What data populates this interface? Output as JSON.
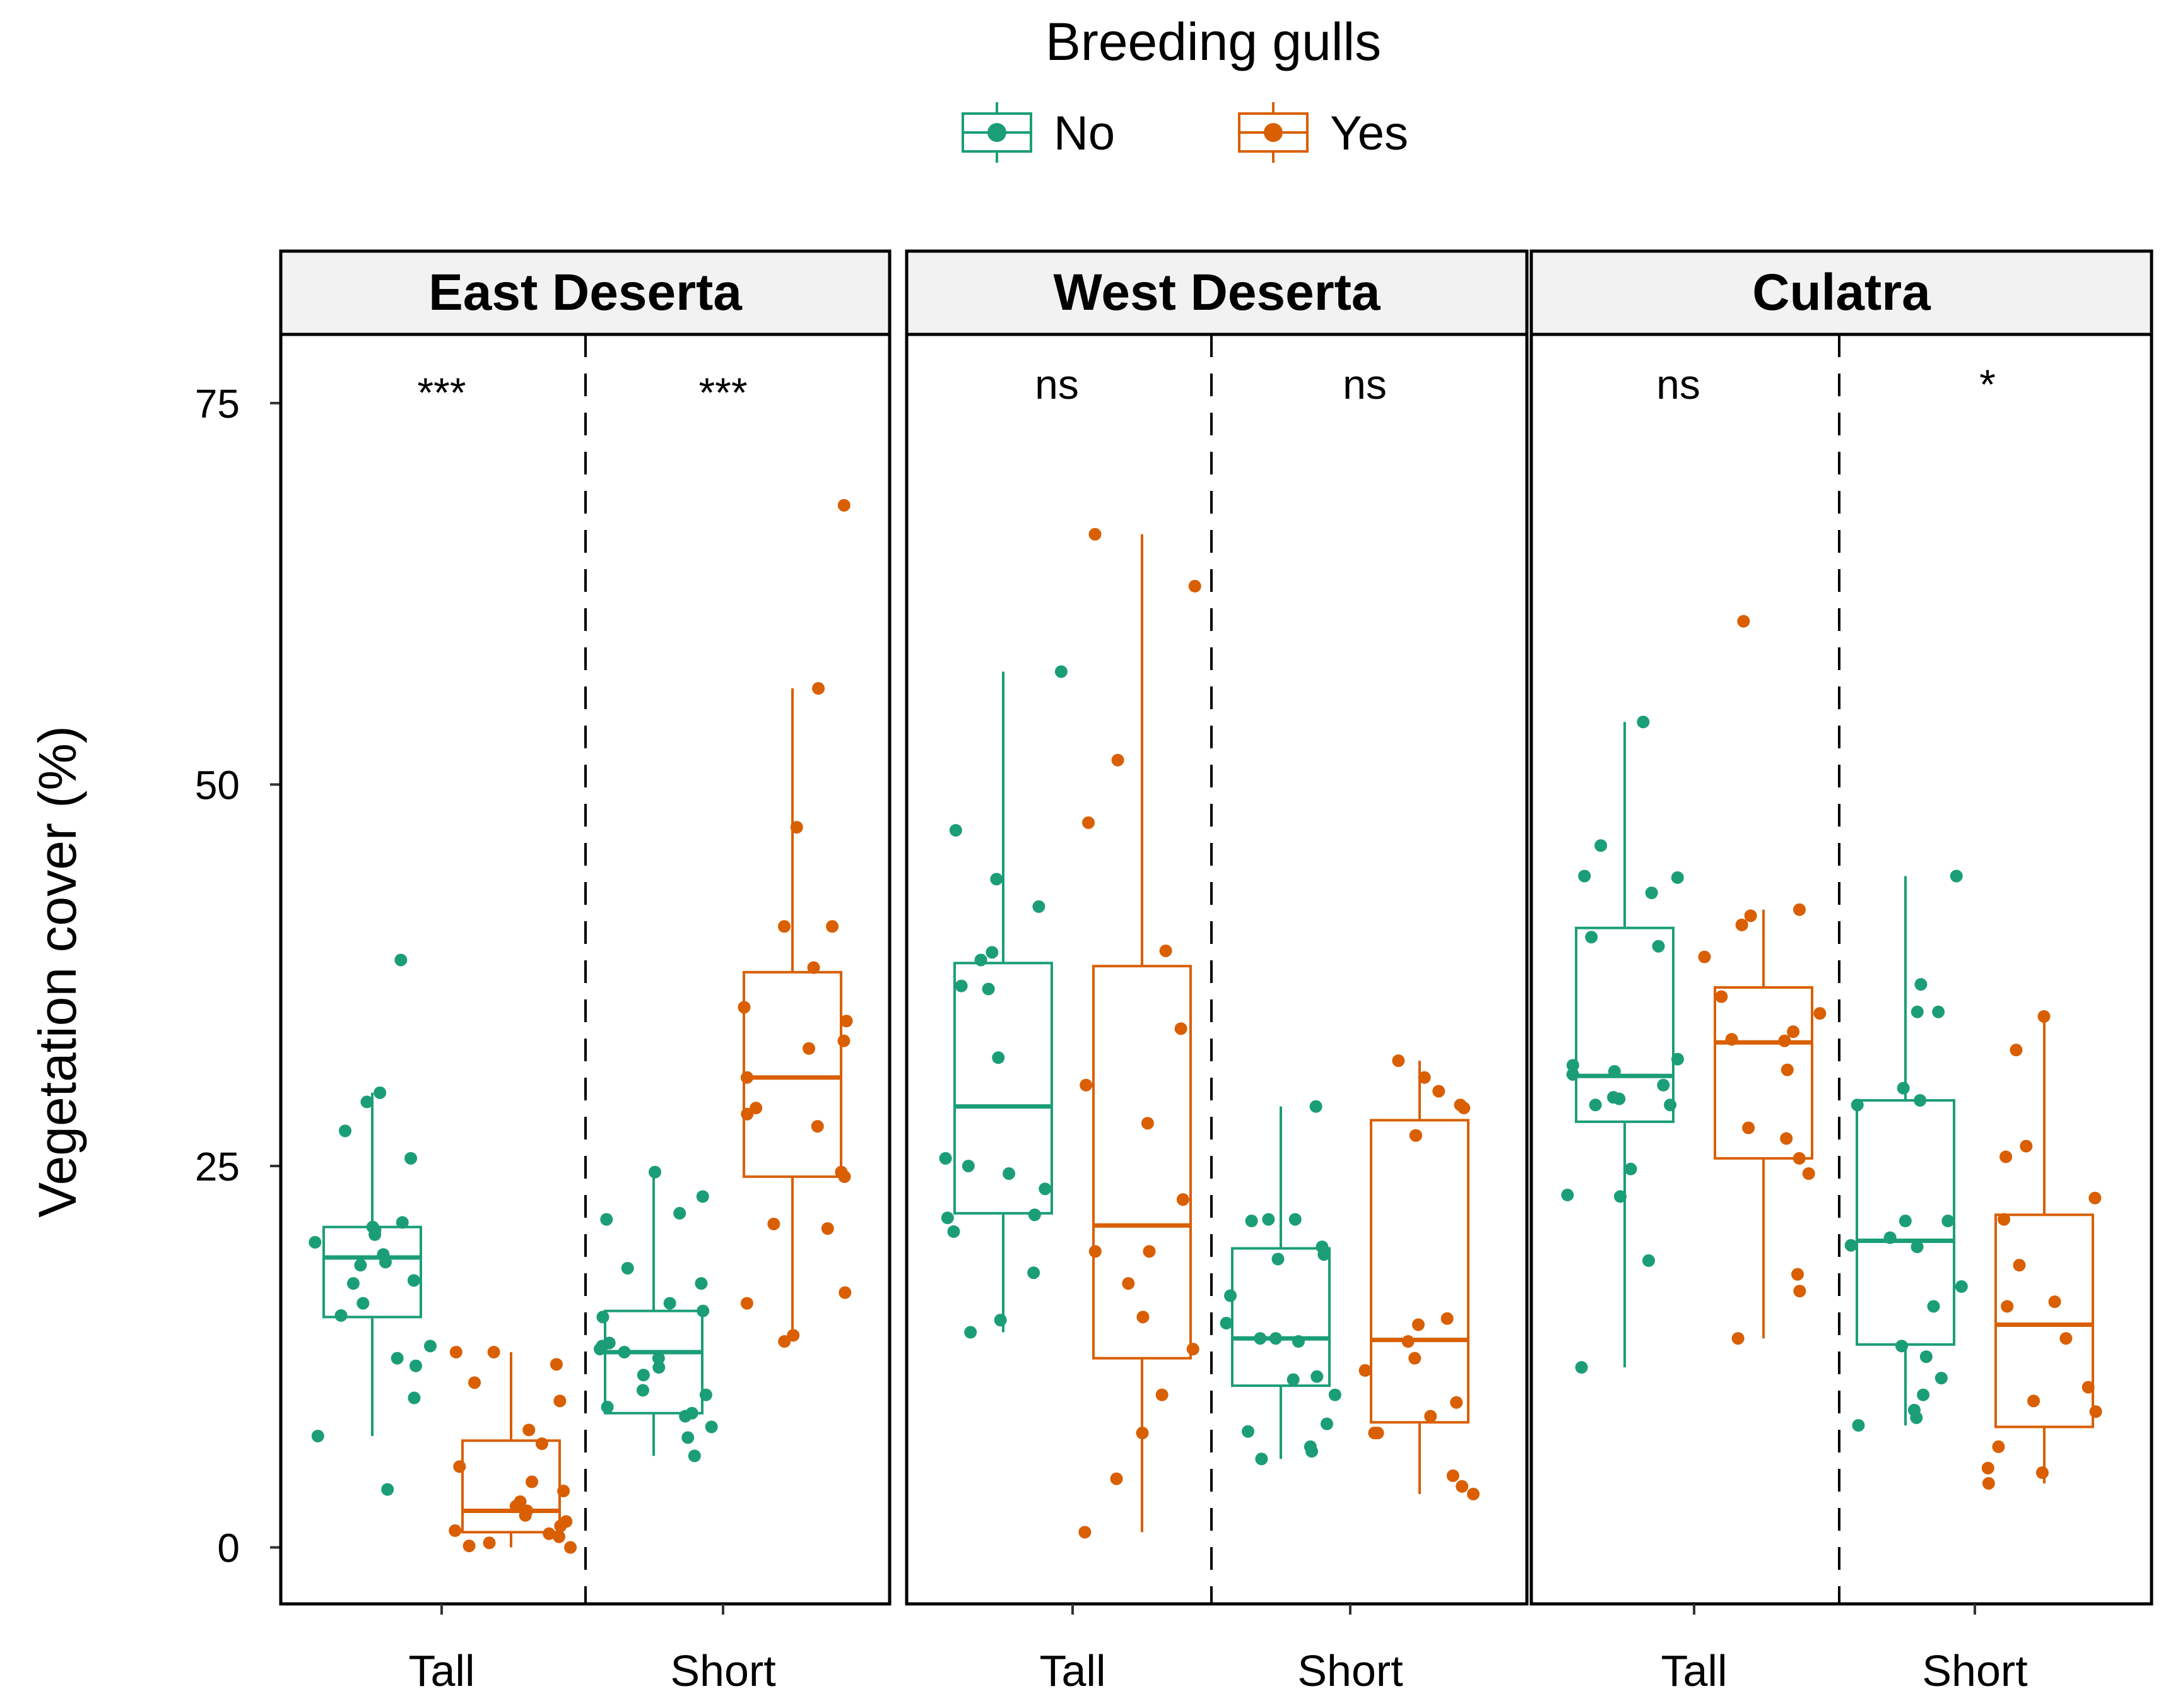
{
  "chart_data": {
    "type": "boxplot",
    "title": "",
    "ylabel": "Vegetation cover (%)",
    "ylim": [
      -3.7,
      79.5
    ],
    "yticks": [
      0,
      25,
      50,
      75
    ],
    "categories": [
      "Tall",
      "Short"
    ],
    "legend": {
      "title": "Breeding gulls",
      "position": "top",
      "entries": [
        {
          "name": "No",
          "color": "#1b9e77"
        },
        {
          "name": "Yes",
          "color": "#d95f02"
        }
      ]
    },
    "panels": [
      {
        "name": "East Deserta",
        "significance": [
          "***",
          "***"
        ],
        "groups": [
          {
            "category": "Tall",
            "gulls": "No",
            "box": {
              "min": 7.3,
              "q1": 15.1,
              "median": 19.0,
              "q3": 21.0,
              "max": 29.8
            },
            "points": [
              38.5,
              29.8,
              29.2,
              27.3,
              25.5,
              21.3,
              21.0,
              20.8,
              20.5,
              20.0,
              19.2,
              18.7,
              18.5,
              17.5,
              17.3,
              16.0,
              15.2,
              13.2,
              12.4,
              11.9,
              9.8,
              7.3,
              3.8
            ]
          },
          {
            "category": "Tall",
            "gulls": "Yes",
            "box": {
              "min": 0.0,
              "q1": 1.0,
              "median": 2.4,
              "q3": 7.0,
              "max": 12.8
            },
            "points": [
              12.8,
              12.8,
              12.0,
              10.8,
              9.6,
              7.7,
              6.8,
              5.3,
              4.3,
              3.7,
              3.0,
              2.7,
              2.4,
              2.1,
              1.7,
              1.4,
              1.1,
              0.9,
              0.7,
              0.3,
              0.1,
              0.0
            ]
          },
          {
            "category": "Short",
            "gulls": "No",
            "box": {
              "min": 6.0,
              "q1": 8.8,
              "median": 12.8,
              "q3": 15.5,
              "max": 24.6
            },
            "points": [
              24.6,
              23.0,
              21.9,
              21.5,
              18.3,
              17.3,
              16.0,
              15.5,
              15.1,
              13.4,
              13.2,
              13.0,
              12.8,
              12.4,
              11.8,
              11.3,
              10.3,
              10.0,
              9.2,
              8.8,
              8.6,
              7.9,
              7.2,
              6.0
            ]
          },
          {
            "category": "Short",
            "gulls": "Yes",
            "box": {
              "min": 13.5,
              "q1": 24.3,
              "median": 30.8,
              "q3": 37.7,
              "max": 56.3
            },
            "points": [
              68.3,
              56.3,
              47.2,
              40.7,
              40.7,
              38.0,
              35.4,
              34.5,
              33.2,
              32.7,
              30.8,
              28.8,
              28.4,
              27.6,
              24.6,
              24.3,
              21.2,
              20.9,
              16.7,
              16.0,
              13.9,
              13.5
            ]
          }
        ]
      },
      {
        "name": "West Deserta",
        "significance": [
          "ns",
          "ns"
        ],
        "groups": [
          {
            "category": "Tall",
            "gulls": "No",
            "box": {
              "min": 14.1,
              "q1": 21.9,
              "median": 28.9,
              "q3": 38.3,
              "max": 57.4
            },
            "points": [
              57.4,
              47.0,
              43.8,
              42.0,
              39.0,
              38.5,
              36.8,
              36.6,
              32.1,
              25.5,
              25.0,
              24.5,
              23.5,
              21.8,
              21.6,
              20.7,
              18.0,
              14.9,
              14.1
            ]
          },
          {
            "category": "Tall",
            "gulls": "Yes",
            "box": {
              "min": 1.0,
              "q1": 12.4,
              "median": 21.1,
              "q3": 38.1,
              "max": 66.4
            },
            "points": [
              66.4,
              63.0,
              51.6,
              47.5,
              39.1,
              34.0,
              30.3,
              27.8,
              22.8,
              19.4,
              19.4,
              17.3,
              15.1,
              13.0,
              10.0,
              7.5,
              4.5,
              1.0
            ]
          },
          {
            "category": "Short",
            "gulls": "No",
            "box": {
              "min": 5.8,
              "q1": 10.6,
              "median": 13.7,
              "q3": 19.6,
              "max": 28.9
            },
            "points": [
              28.9,
              21.5,
              21.5,
              21.4,
              19.7,
              19.2,
              18.9,
              16.5,
              14.7,
              13.7,
              13.7,
              13.5,
              11.2,
              11.0,
              10.0,
              8.1,
              7.6,
              6.6,
              6.3,
              5.8
            ]
          },
          {
            "category": "Short",
            "gulls": "Yes",
            "box": {
              "min": 3.5,
              "q1": 8.2,
              "median": 13.6,
              "q3": 28.0,
              "max": 31.9
            },
            "points": [
              31.9,
              30.8,
              29.9,
              29.0,
              28.8,
              27.0,
              27.0,
              15.0,
              14.6,
              13.5,
              12.4,
              11.6,
              9.5,
              8.6,
              7.5,
              7.5,
              4.7,
              4.0,
              3.5
            ]
          }
        ]
      },
      {
        "name": "Culatra",
        "significance": [
          "ns",
          "*"
        ],
        "groups": [
          {
            "category": "Tall",
            "gulls": "No",
            "box": {
              "min": 11.8,
              "q1": 27.9,
              "median": 30.9,
              "q3": 40.6,
              "max": 54.1
            },
            "points": [
              54.1,
              46.0,
              44.0,
              43.9,
              42.9,
              40.0,
              39.4,
              32.0,
              31.6,
              31.2,
              31.0,
              30.3,
              29.5,
              29.4,
              29.0,
              29.0,
              24.8,
              23.1,
              23.0,
              18.8,
              11.8
            ]
          },
          {
            "category": "Tall",
            "gulls": "Yes",
            "box": {
              "min": 13.7,
              "q1": 25.5,
              "median": 33.1,
              "q3": 36.7,
              "max": 41.8
            },
            "points": [
              60.7,
              41.8,
              41.4,
              40.8,
              38.7,
              36.1,
              35.0,
              33.8,
              33.3,
              33.2,
              31.3,
              27.5,
              26.8,
              25.5,
              24.5,
              17.9,
              16.8,
              13.7
            ]
          },
          {
            "category": "Short",
            "gulls": "No",
            "box": {
              "min": 8.0,
              "q1": 13.3,
              "median": 20.1,
              "q3": 29.3,
              "max": 44.0
            },
            "points": [
              44.0,
              36.9,
              35.1,
              35.1,
              30.1,
              29.3,
              29.0,
              21.4,
              21.4,
              20.3,
              19.8,
              19.7,
              17.1,
              15.8,
              13.2,
              12.5,
              11.1,
              10.0,
              9.0,
              8.5,
              8.0
            ]
          },
          {
            "category": "Short",
            "gulls": "Yes",
            "box": {
              "min": 4.2,
              "q1": 7.9,
              "median": 14.6,
              "q3": 21.8,
              "max": 34.8
            },
            "points": [
              34.8,
              32.6,
              26.3,
              25.6,
              22.9,
              21.5,
              18.5,
              16.1,
              15.8,
              13.7,
              10.5,
              9.6,
              8.9,
              6.6,
              5.2,
              4.9,
              4.2
            ]
          }
        ]
      }
    ]
  }
}
